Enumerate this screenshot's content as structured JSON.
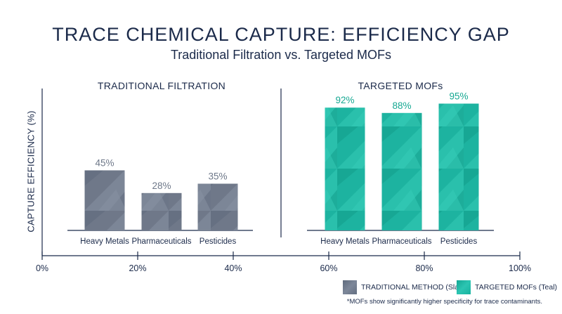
{
  "header": {
    "title": "TRACE CHEMICAL CAPTURE: EFFICIENCY GAP",
    "subtitle": "Traditional Filtration vs. Targeted MOFs"
  },
  "chart_data": {
    "type": "bar",
    "ylabel": "CAPTURE EFFICIENCY (%)",
    "xaxis_ticks": [
      "0%",
      "20%",
      "40%",
      "60%",
      "80%",
      "100%"
    ],
    "xlim": [
      0,
      100
    ],
    "grid": false,
    "legend_placement": "bottom-right",
    "panels": [
      {
        "title": "TRADITIONAL FILTRATION",
        "categories": [
          "Heavy Metals",
          "Pharmaceuticals",
          "Pesticides"
        ],
        "values": [
          45,
          28,
          35
        ],
        "value_labels": [
          "45%",
          "28%",
          "35%"
        ],
        "color": "#6e7889",
        "label_color": "#6e7889"
      },
      {
        "title": "TARGETED MOFs",
        "categories": [
          "Heavy Metals",
          "Pharmaceuticals",
          "Pesticides"
        ],
        "values": [
          92,
          88,
          95
        ],
        "value_labels": [
          "92%",
          "88%",
          "95%"
        ],
        "color": "#1db3a0",
        "label_color": "#16a892"
      }
    ],
    "ylim": [
      0,
      100
    ],
    "legend": [
      {
        "label": "TRADITIONAL METHOD (Slate)",
        "color": "#6e7889"
      },
      {
        "label": "TARGETED MOFs (Teal)",
        "color": "#1db3a0"
      }
    ],
    "footnote": "*MOFs show significantly higher specificity for trace contaminants."
  }
}
